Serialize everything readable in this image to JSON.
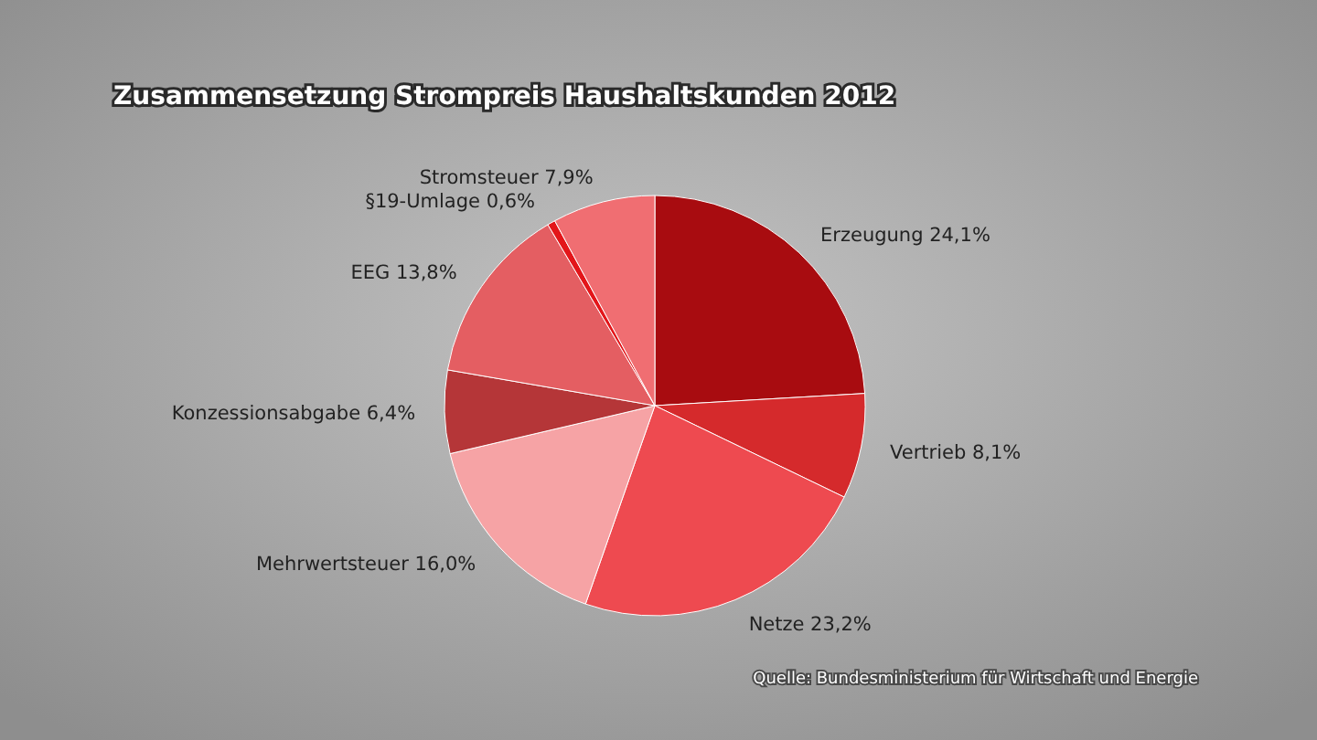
{
  "chart_data": {
    "type": "pie",
    "title": "Zusammensetzung Strompreis Haushaltskunden 2012",
    "categories": [
      "Erzeugung",
      "Vertrieb",
      "Netze",
      "Mehrwertsteuer",
      "Konzessionsabgabe",
      "EEG",
      "§19-Umlage",
      "Stromsteuer"
    ],
    "values": [
      24.1,
      8.1,
      23.2,
      16.0,
      6.4,
      13.8,
      0.6,
      7.9
    ],
    "value_labels": [
      "24,1%",
      "8,1%",
      "23,2%",
      "16,0%",
      "6,4%",
      "13,8%",
      "0,6%",
      "7,9%"
    ],
    "colors": [
      "#a80c10",
      "#d52a2c",
      "#ee4a50",
      "#f6a3a5",
      "#b53638",
      "#e45e62",
      "#e3161a",
      "#f06e72"
    ],
    "annotations": [
      "Quelle: Bundesministerium für Wirtschaft und Energie"
    ]
  }
}
